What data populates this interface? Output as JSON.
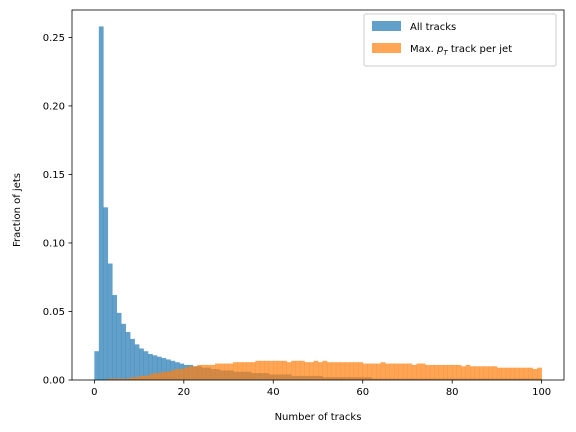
{
  "chart_data": {
    "type": "bar",
    "subtype": "histogram",
    "xlabel": "Number of tracks",
    "ylabel": "Fraction of jets",
    "xlim": [
      -5,
      105
    ],
    "ylim": [
      0,
      0.27
    ],
    "xticks": [
      0,
      20,
      40,
      60,
      80,
      100
    ],
    "xtick_labels": [
      "0",
      "20",
      "40",
      "60",
      "80",
      "100"
    ],
    "yticks": [
      0.0,
      0.05,
      0.1,
      0.15,
      0.2,
      0.25
    ],
    "ytick_labels": [
      "0.00",
      "0.05",
      "0.10",
      "0.15",
      "0.20",
      "0.25"
    ],
    "grid": false,
    "legend_position": "upper-right",
    "bin_edges_range": [
      0,
      100
    ],
    "bin_width": 1,
    "series": [
      {
        "name": "All tracks",
        "color": "#1f77b4",
        "alpha": 0.7,
        "values": [
          0.021,
          0.258,
          0.126,
          0.085,
          0.062,
          0.049,
          0.041,
          0.035,
          0.03,
          0.026,
          0.023,
          0.021,
          0.019,
          0.018,
          0.017,
          0.016,
          0.015,
          0.014,
          0.013,
          0.012,
          0.011,
          0.011,
          0.01,
          0.01,
          0.009,
          0.009,
          0.008,
          0.008,
          0.007,
          0.007,
          0.007,
          0.006,
          0.006,
          0.006,
          0.006,
          0.005,
          0.005,
          0.005,
          0.005,
          0.004,
          0.004,
          0.004,
          0.004,
          0.004,
          0.003,
          0.003,
          0.003,
          0.003,
          0.003,
          0.003,
          0.003,
          0.002,
          0.002,
          0.002,
          0.002,
          0.002,
          0.002,
          0.002,
          0.002,
          0.002,
          0.002,
          0.002,
          0.001,
          0.001,
          0.001,
          0.001,
          0.001,
          0.001,
          0.001,
          0.001,
          0.001,
          0.001,
          0.001,
          0.001,
          0.001,
          0.001,
          0.001,
          0.001,
          0.001,
          0.001,
          0.001,
          0.001,
          0.001,
          0.001,
          0.001,
          0.001,
          0.001,
          0.001,
          0.001,
          0.001,
          0.001,
          0.001,
          0.001,
          0.001,
          0.001,
          0.001,
          0.001,
          0.001,
          0.001,
          0.001
        ]
      },
      {
        "name": "Max. p_T track per jet",
        "legend_label": {
          "prefix": "Max. ",
          "symbol": "p",
          "subscript": "T",
          "suffix": " track per jet"
        },
        "color": "#ff7f0e",
        "alpha": 0.7,
        "values": [
          0.0,
          0.0,
          0.0,
          0.001,
          0.001,
          0.001,
          0.001,
          0.001,
          0.002,
          0.002,
          0.003,
          0.003,
          0.004,
          0.005,
          0.005,
          0.006,
          0.006,
          0.007,
          0.008,
          0.008,
          0.009,
          0.01,
          0.01,
          0.011,
          0.011,
          0.011,
          0.011,
          0.012,
          0.012,
          0.012,
          0.012,
          0.013,
          0.013,
          0.013,
          0.013,
          0.013,
          0.014,
          0.014,
          0.014,
          0.014,
          0.014,
          0.014,
          0.014,
          0.013,
          0.014,
          0.014,
          0.014,
          0.013,
          0.013,
          0.014,
          0.013,
          0.014,
          0.013,
          0.013,
          0.013,
          0.013,
          0.013,
          0.013,
          0.013,
          0.013,
          0.012,
          0.012,
          0.012,
          0.012,
          0.013,
          0.012,
          0.012,
          0.012,
          0.012,
          0.012,
          0.012,
          0.011,
          0.012,
          0.012,
          0.011,
          0.011,
          0.011,
          0.011,
          0.011,
          0.011,
          0.011,
          0.011,
          0.01,
          0.011,
          0.01,
          0.01,
          0.01,
          0.01,
          0.01,
          0.01,
          0.009,
          0.009,
          0.009,
          0.009,
          0.009,
          0.009,
          0.009,
          0.009,
          0.008,
          0.009
        ]
      }
    ]
  }
}
